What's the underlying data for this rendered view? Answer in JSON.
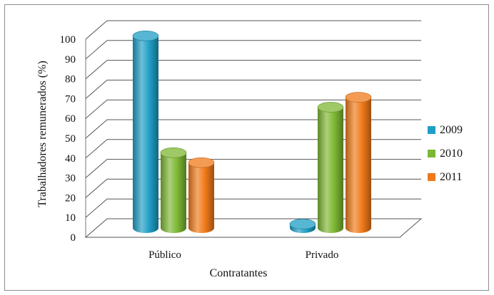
{
  "chart_data": {
    "type": "bar",
    "style": "3d-cylinder",
    "title": "",
    "xlabel": "Contratantes",
    "ylabel": "Trabalhadores remunerados  (%)",
    "ylim": [
      0,
      100
    ],
    "yticks": [
      0,
      10,
      20,
      30,
      40,
      50,
      60,
      70,
      80,
      90,
      100
    ],
    "categories": [
      "Público",
      "Privado"
    ],
    "series": [
      {
        "name": "2009",
        "color": "#1f9ec4",
        "values": [
          97,
          2
        ]
      },
      {
        "name": "2010",
        "color": "#7db733",
        "values": [
          38,
          61
        ]
      },
      {
        "name": "2011",
        "color": "#f07a1a",
        "values": [
          33,
          66
        ]
      }
    ],
    "grid": true,
    "legend_position": "right"
  }
}
